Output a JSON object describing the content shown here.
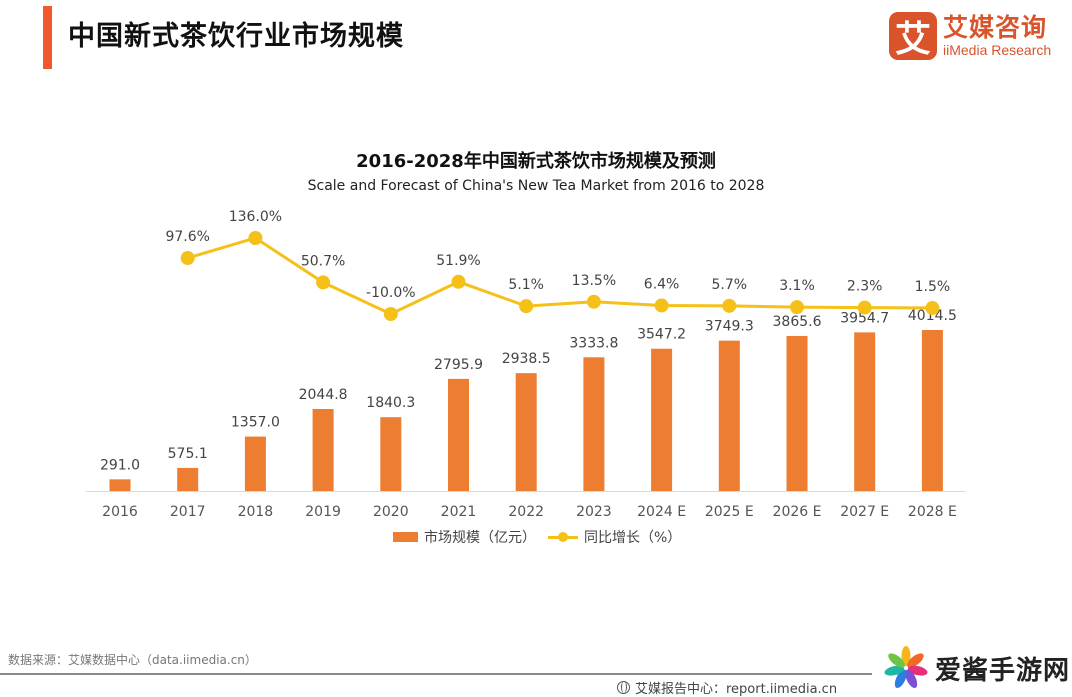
{
  "header": {
    "title": "中国新式茶饮行业市场规模",
    "accent_color": "#f05a2a"
  },
  "logo": {
    "mark": "艾",
    "name_cn": "艾媒咨询",
    "name_en": "iiMedia Research",
    "color": "#d9542b"
  },
  "chart_data": {
    "type": "bar",
    "title": "2016-2028年中国新式茶饮市场规模及预测",
    "subtitle": "Scale and Forecast of China's New Tea Market from 2016 to 2028",
    "categories": [
      "2016",
      "2017",
      "2018",
      "2019",
      "2020",
      "2021",
      "2022",
      "2023",
      "2024 E",
      "2025 E",
      "2026 E",
      "2027 E",
      "2028 E"
    ],
    "series": [
      {
        "name": "市场规模（亿元）",
        "type": "bar",
        "color": "#ed7d31",
        "values": [
          291.0,
          575.1,
          1357.0,
          2044.8,
          1840.3,
          2795.9,
          2938.5,
          3333.8,
          3547.2,
          3749.3,
          3865.6,
          3954.7,
          4014.5
        ],
        "labels": [
          "291.0",
          "575.1",
          "1357.0",
          "2044.8",
          "1840.3",
          "2795.9",
          "2938.5",
          "3333.8",
          "3547.2",
          "3749.3",
          "3865.6",
          "3954.7",
          "4014.5"
        ]
      },
      {
        "name": "同比增长（%）",
        "type": "line",
        "color": "#f5c018",
        "values": [
          null,
          97.6,
          136.0,
          50.7,
          -10.0,
          51.9,
          5.1,
          13.5,
          6.4,
          5.7,
          3.1,
          2.3,
          1.5
        ],
        "labels": [
          "",
          "97.6%",
          "136.0%",
          "50.7%",
          "-10.0%",
          "51.9%",
          "5.1%",
          "13.5%",
          "6.4%",
          "5.7%",
          "3.1%",
          "2.3%",
          "1.5%"
        ]
      }
    ],
    "xlabel": "",
    "ylabel": "",
    "grid": false,
    "axes_visible": false,
    "legend": "bottom-center"
  },
  "footer": {
    "source": "数据来源：艾媒数据中心（data.iimedia.cn）",
    "report": "艾媒报告中心：report.iimedia.cn",
    "watermark": "爱酱手游网"
  }
}
